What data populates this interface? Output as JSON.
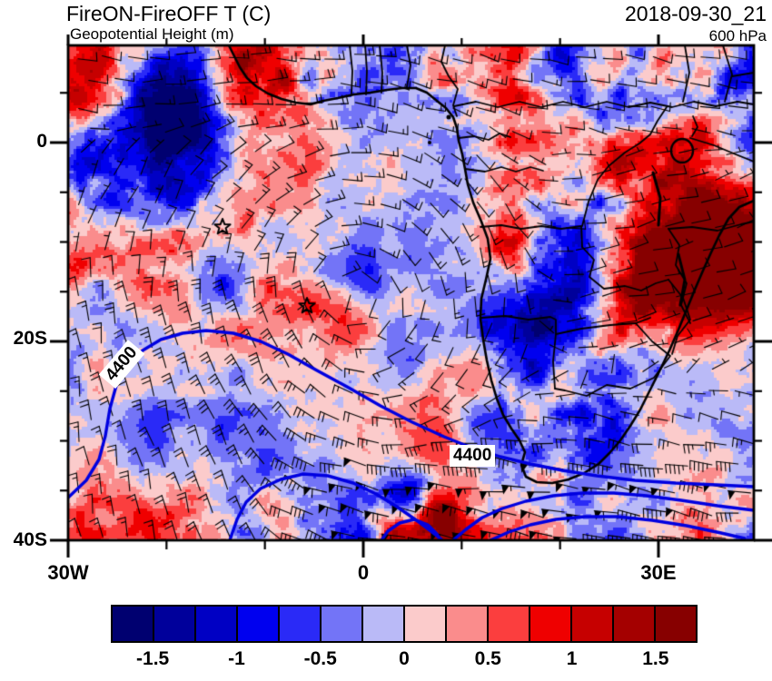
{
  "header": {
    "title": "FireON-FireOFF T (C)",
    "datetime": "2018-09-30_21",
    "subtitle": "Geopotential Height (m)",
    "level": "600 hPa"
  },
  "map": {
    "y_tick_labels": [
      "0",
      "20S",
      "40S"
    ],
    "x_tick_labels": [
      "30W",
      "0",
      "30E"
    ],
    "contour_label": "4400",
    "contour_color": "#0000E0",
    "outline_color": "#000000",
    "star_marker": "open-five-pointed-star",
    "star_count": 2
  },
  "colorbar": {
    "labels": [
      "-1.5",
      "-1",
      "-0.5",
      "0",
      "0.5",
      "1",
      "1.5"
    ],
    "colors": [
      "#000070",
      "#00009B",
      "#0000C4",
      "#0000EF",
      "#2A2AF7",
      "#7374F7",
      "#BABAF7",
      "#FBCBCB",
      "#FA8C8C",
      "#FB3E3E",
      "#EF0000",
      "#C60000",
      "#A40000",
      "#870000"
    ],
    "min": -1.75,
    "max": 1.75,
    "step": 0.25
  },
  "map_data": {
    "type": "filled-contour-weather-map",
    "variable": "FireON-FireOFF temperature difference (C)",
    "overlay_field": "Geopotential Height (m)",
    "pressure_level": "600 hPa",
    "valid_time": "2018-09-30_21",
    "geopotential_contour_value_m": 4400,
    "lat_axis": {
      "labeled_ticks": [
        "0",
        "20S",
        "40S"
      ],
      "minor_interval_deg": 5
    },
    "lon_axis": {
      "labeled_ticks": [
        "30W",
        "0",
        "30E"
      ],
      "minor_interval_deg": 10
    },
    "wind_symbols": "wind barbs",
    "shading_scale_C": [
      -1.5,
      -1,
      -0.5,
      0,
      0.5,
      1,
      1.5
    ]
  }
}
